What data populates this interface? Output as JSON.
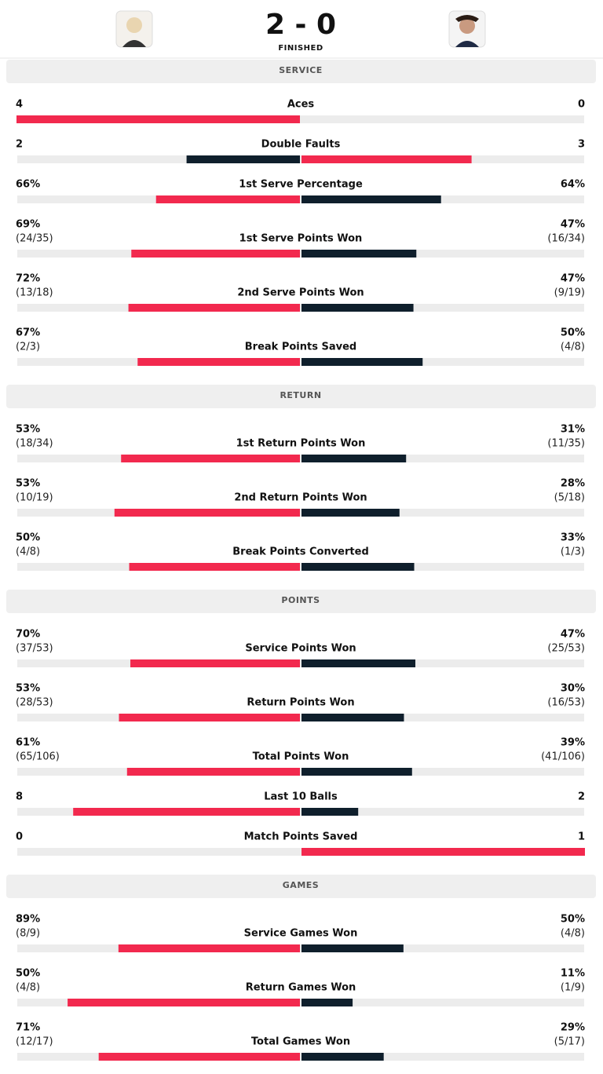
{
  "header": {
    "score": "2 - 0",
    "status": "FINISHED"
  },
  "sections": [
    {
      "title": "SERVICE",
      "rows": [
        {
          "label": "Aces",
          "left": 4,
          "right": 0
        },
        {
          "label": "Double Faults",
          "left": 2,
          "right": 3
        },
        {
          "label": "1st Serve Percentage",
          "left": {
            "value": 66,
            "label": "66%"
          },
          "right": {
            "value": 64,
            "label": "64%"
          }
        },
        {
          "label": "1st Serve Points Won",
          "left": {
            "value": 69,
            "label": "69%"
          },
          "left_detail": "(24/35)",
          "right": {
            "value": 47,
            "label": "47%"
          },
          "right_detail": "(16/34)"
        },
        {
          "label": "2nd Serve Points Won",
          "left": {
            "value": 72,
            "label": "72%"
          },
          "left_detail": "(13/18)",
          "right": {
            "value": 47,
            "label": "47%"
          },
          "right_detail": "(9/19)"
        },
        {
          "label": "Break Points Saved",
          "left": {
            "value": 67,
            "label": "67%"
          },
          "left_detail": "(2/3)",
          "right": {
            "value": 50,
            "label": "50%"
          },
          "right_detail": "(4/8)"
        }
      ]
    },
    {
      "title": "RETURN",
      "rows": [
        {
          "label": "1st Return Points Won",
          "left": {
            "value": 53,
            "label": "53%"
          },
          "left_detail": "(18/34)",
          "right": {
            "value": 31,
            "label": "31%"
          },
          "right_detail": "(11/35)"
        },
        {
          "label": "2nd Return Points Won",
          "left": {
            "value": 53,
            "label": "53%"
          },
          "left_detail": "(10/19)",
          "right": {
            "value": 28,
            "label": "28%"
          },
          "right_detail": "(5/18)"
        },
        {
          "label": "Break Points Converted",
          "left": {
            "value": 50,
            "label": "50%"
          },
          "left_detail": "(4/8)",
          "right": {
            "value": 33,
            "label": "33%"
          },
          "right_detail": "(1/3)"
        }
      ]
    },
    {
      "title": "POINTS",
      "rows": [
        {
          "label": "Service Points Won",
          "left": {
            "value": 70,
            "label": "70%"
          },
          "left_detail": "(37/53)",
          "right": {
            "value": 47,
            "label": "47%"
          },
          "right_detail": "(25/53)"
        },
        {
          "label": "Return Points Won",
          "left": {
            "value": 53,
            "label": "53%"
          },
          "left_detail": "(28/53)",
          "right": {
            "value": 30,
            "label": "30%"
          },
          "right_detail": "(16/53)"
        },
        {
          "label": "Total Points Won",
          "left": {
            "value": 61,
            "label": "61%"
          },
          "left_detail": "(65/106)",
          "right": {
            "value": 39,
            "label": "39%"
          },
          "right_detail": "(41/106)"
        },
        {
          "label": "Last 10 Balls",
          "left": 8,
          "right": 2
        },
        {
          "label": "Match Points Saved",
          "left": 0,
          "right": 1
        }
      ]
    },
    {
      "title": "GAMES",
      "rows": [
        {
          "label": "Service Games Won",
          "left": {
            "value": 89,
            "label": "89%"
          },
          "left_detail": "(8/9)",
          "right": {
            "value": 50,
            "label": "50%"
          },
          "right_detail": "(4/8)"
        },
        {
          "label": "Return Games Won",
          "left": {
            "value": 50,
            "label": "50%"
          },
          "left_detail": "(4/8)",
          "right": {
            "value": 11,
            "label": "11%"
          },
          "right_detail": "(1/9)"
        },
        {
          "label": "Total Games Won",
          "left": {
            "value": 71,
            "label": "71%"
          },
          "left_detail": "(12/17)",
          "right": {
            "value": 29,
            "label": "29%"
          },
          "right_detail": "(5/17)"
        }
      ]
    }
  ]
}
